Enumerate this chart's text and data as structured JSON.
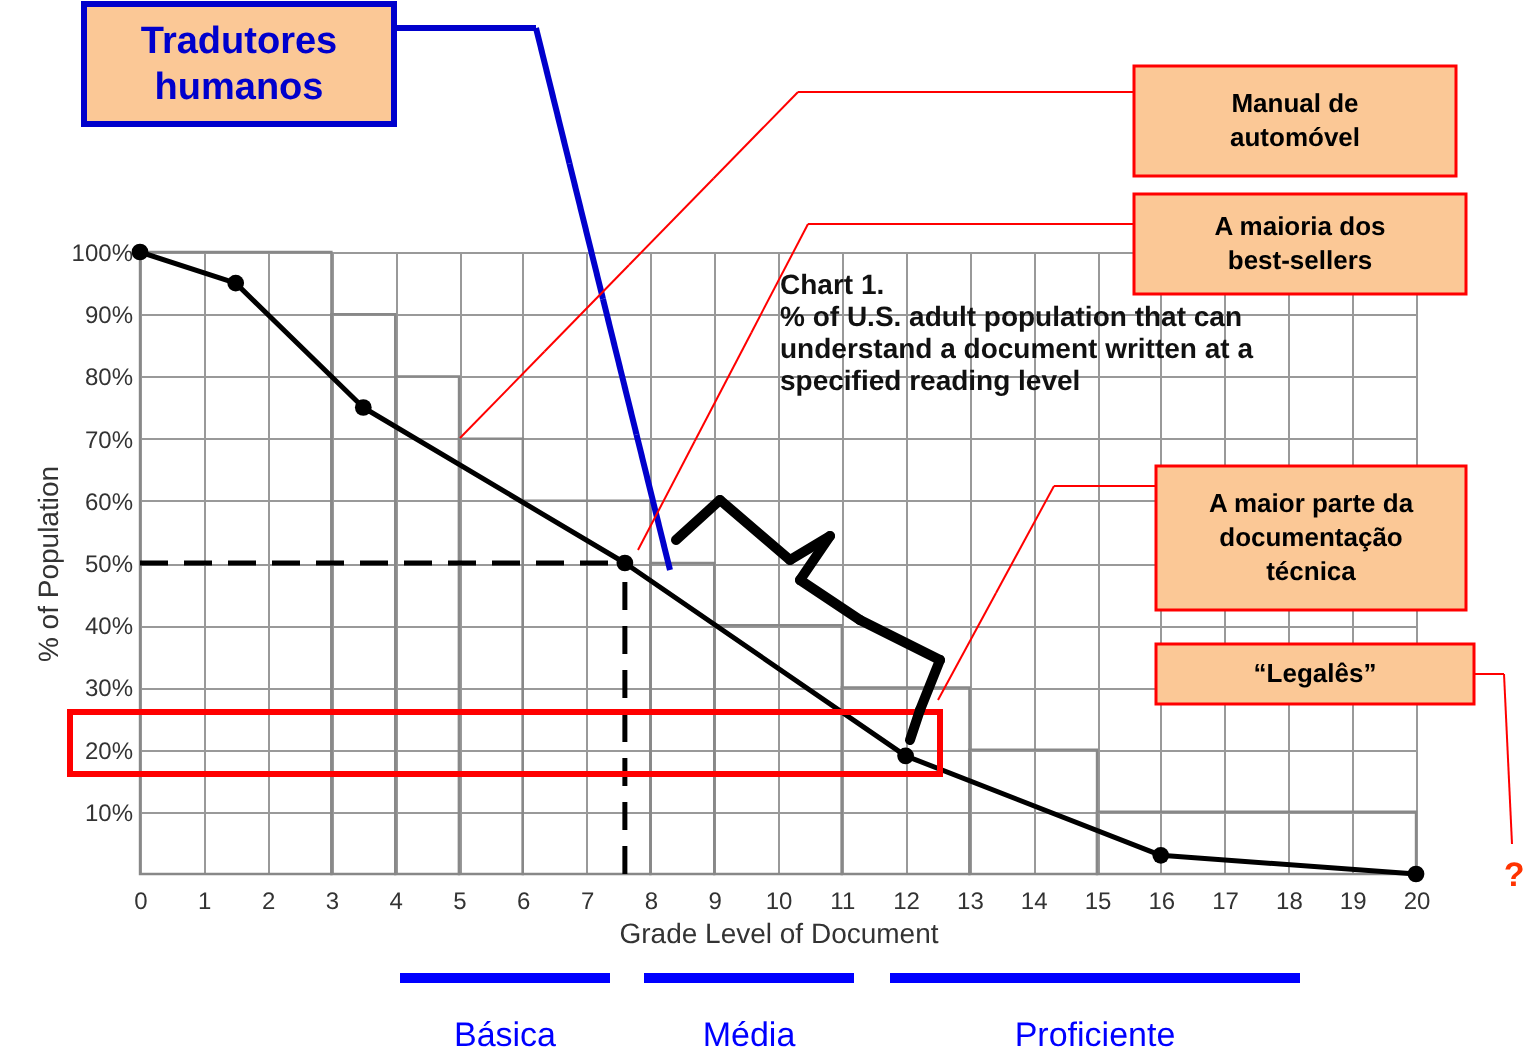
{
  "chart_data": {
    "type": "line",
    "title": "Chart 1.",
    "subtitle": "% of U.S. adult population that can understand a document written at a specified reading level",
    "xlabel": "Grade Level of Document",
    "ylabel": "% of Population",
    "xlim": [
      0,
      20
    ],
    "xticks": [
      0,
      1,
      2,
      3,
      4,
      5,
      6,
      7,
      8,
      9,
      10,
      11,
      12,
      13,
      14,
      15,
      16,
      17,
      18,
      19,
      20
    ],
    "ylim": [
      0,
      100
    ],
    "yticks": [
      {
        "value": 10,
        "label": "10%"
      },
      {
        "value": 20,
        "label": "20%"
      },
      {
        "value": 30,
        "label": "30%"
      },
      {
        "value": 40,
        "label": "40%"
      },
      {
        "value": 50,
        "label": "50%"
      },
      {
        "value": 60,
        "label": "60%"
      },
      {
        "value": 70,
        "label": "70%"
      },
      {
        "value": 80,
        "label": "80%"
      },
      {
        "value": 90,
        "label": "90%"
      },
      {
        "value": 100,
        "label": "100%"
      }
    ],
    "grid": true,
    "series": [
      {
        "type": "histogram",
        "color": "#888888",
        "bins": [
          0,
          3,
          4,
          5,
          6,
          8,
          9,
          11,
          13,
          15,
          20
        ],
        "values": [
          100,
          90,
          80,
          70,
          60,
          50,
          40,
          30,
          20,
          10
        ]
      },
      {
        "color": "#000000",
        "marker": "circle",
        "line_style": "solid",
        "x": [
          0,
          1.5,
          3.5,
          7.6,
          12,
          16,
          20
        ],
        "values": [
          100,
          95,
          75,
          50,
          19,
          3,
          0
        ]
      }
    ],
    "ref_lines": [
      {
        "axis": "y",
        "value": 50,
        "color": "#000000",
        "line_style": "dashed"
      },
      {
        "axis": "x",
        "value": 7.6,
        "color": "#000000",
        "line_style": "dashed"
      }
    ],
    "annotations": [
      "Tradutores humanos",
      "Manual de automóvel",
      "A maioria dos best-sellers",
      "A maior parte da documentação técnica",
      "“Legalês”",
      "?",
      "Básica",
      "Média",
      "Proficiente"
    ]
  }
}
